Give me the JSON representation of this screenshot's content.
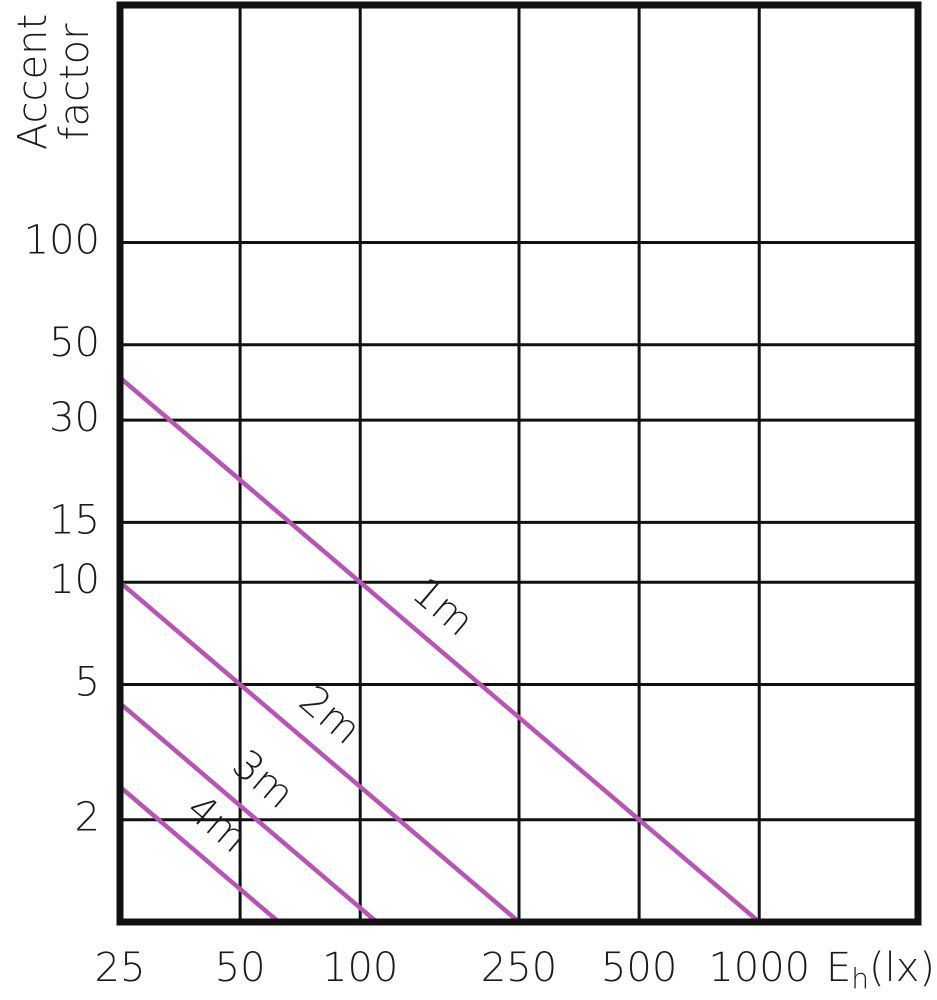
{
  "chart_data": {
    "type": "line",
    "xlabel": [
      "E",
      "h",
      "(lx)"
    ],
    "ylabel": [
      "Accent",
      "factor"
    ],
    "xscale": "log",
    "yscale": "log",
    "grid": true,
    "xlim": [
      25,
      2500
    ],
    "ylim": [
      1,
      500
    ],
    "xticks": [
      25,
      50,
      100,
      250,
      500,
      1000
    ],
    "yticks": [
      2,
      5,
      10,
      15,
      30,
      50,
      100
    ],
    "series": [
      {
        "name": "1m",
        "color": "#b655b4",
        "x": [
          25,
          1000
        ],
        "values": [
          40,
          1
        ]
      },
      {
        "name": "2m",
        "color": "#b655b4",
        "x": [
          25,
          250
        ],
        "values": [
          10,
          1
        ]
      },
      {
        "name": "3m",
        "color": "#b655b4",
        "x": [
          25,
          110
        ],
        "values": [
          4.4,
          1
        ]
      },
      {
        "name": "4m",
        "color": "#b655b4",
        "x": [
          25,
          62.5
        ],
        "values": [
          2.5,
          1
        ]
      }
    ]
  }
}
